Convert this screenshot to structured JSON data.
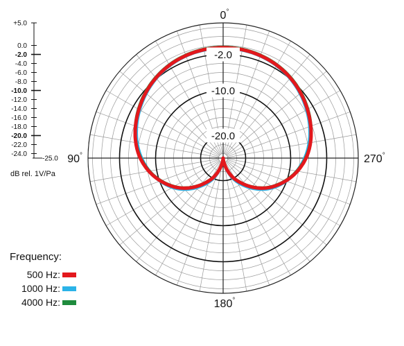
{
  "chart_data": {
    "type": "polar",
    "title": "",
    "scale_label": "dB rel. 1V/Pa",
    "radial_range": [
      -25,
      5
    ],
    "grid": true,
    "angle_labels": [
      {
        "angle": 0,
        "text": "0"
      },
      {
        "angle": 90,
        "text": "90"
      },
      {
        "angle": 180,
        "text": "180"
      },
      {
        "angle": 270,
        "text": "270"
      }
    ],
    "angle_unit_symbol": "°",
    "scale_ticks": [
      {
        "value": 5,
        "label": "+5.0",
        "bold": false
      },
      {
        "value": 0,
        "label": "0.0",
        "bold": false
      },
      {
        "value": -2,
        "label": "-2.0",
        "bold": true
      },
      {
        "value": -4,
        "label": "-4.0",
        "bold": false
      },
      {
        "value": -6,
        "label": "-6.0",
        "bold": false
      },
      {
        "value": -8,
        "label": "-8.0",
        "bold": false
      },
      {
        "value": -10,
        "label": "-10.0",
        "bold": true
      },
      {
        "value": -12,
        "label": "-12.0",
        "bold": false
      },
      {
        "value": -14,
        "label": "-14.0",
        "bold": false
      },
      {
        "value": -16,
        "label": "-16.0",
        "bold": false
      },
      {
        "value": -18,
        "label": "-18.0",
        "bold": false
      },
      {
        "value": -20,
        "label": "-20.0",
        "bold": true
      },
      {
        "value": -22,
        "label": "-22.0",
        "bold": false
      },
      {
        "value": -24,
        "label": "-24.0",
        "bold": false
      },
      {
        "value": -25,
        "label": "-25.0",
        "bold": false
      }
    ],
    "ring_labels": [
      {
        "value": -2,
        "text": "-2.0"
      },
      {
        "value": -10,
        "text": "-10.0"
      },
      {
        "value": -20,
        "text": "-20.0"
      }
    ],
    "series": [
      {
        "name": "500 Hz",
        "color": "#e3181d",
        "angles": [
          0,
          30,
          60,
          90,
          120,
          150,
          180,
          210,
          240,
          270,
          300,
          330
        ],
        "values": [
          -0.5,
          -1.2,
          -3.4,
          -6.6,
          -12.3,
          -19.5,
          -25,
          -19.5,
          -12.3,
          -6.6,
          -3.4,
          -1.2
        ]
      },
      {
        "name": "1000 Hz",
        "color": "#2bb3e8",
        "angles": [
          0,
          30,
          60,
          90,
          120,
          150,
          180,
          210,
          240,
          270,
          300,
          330
        ],
        "values": [
          -0.6,
          -1.3,
          -3.6,
          -6.9,
          -12.0,
          -19.0,
          -25,
          -19.0,
          -12.0,
          -6.9,
          -3.6,
          -1.3
        ]
      },
      {
        "name": "4000 Hz",
        "color": "#1f8b3d",
        "angles": [
          0,
          30,
          60,
          90,
          120,
          150,
          180,
          210,
          240,
          270,
          300,
          330
        ],
        "values": [
          -0.4,
          -1.1,
          -3.3,
          -6.7,
          -12.4,
          -19.6,
          -25,
          -19.6,
          -12.4,
          -6.7,
          -3.3,
          -1.1
        ]
      }
    ]
  },
  "legend": {
    "title": "Frequency:",
    "items": [
      {
        "label": "500 Hz:",
        "color": "#e3181d"
      },
      {
        "label": "1000 Hz:",
        "color": "#2bb3e8"
      },
      {
        "label": "4000 Hz:",
        "color": "#1f8b3d"
      }
    ]
  }
}
